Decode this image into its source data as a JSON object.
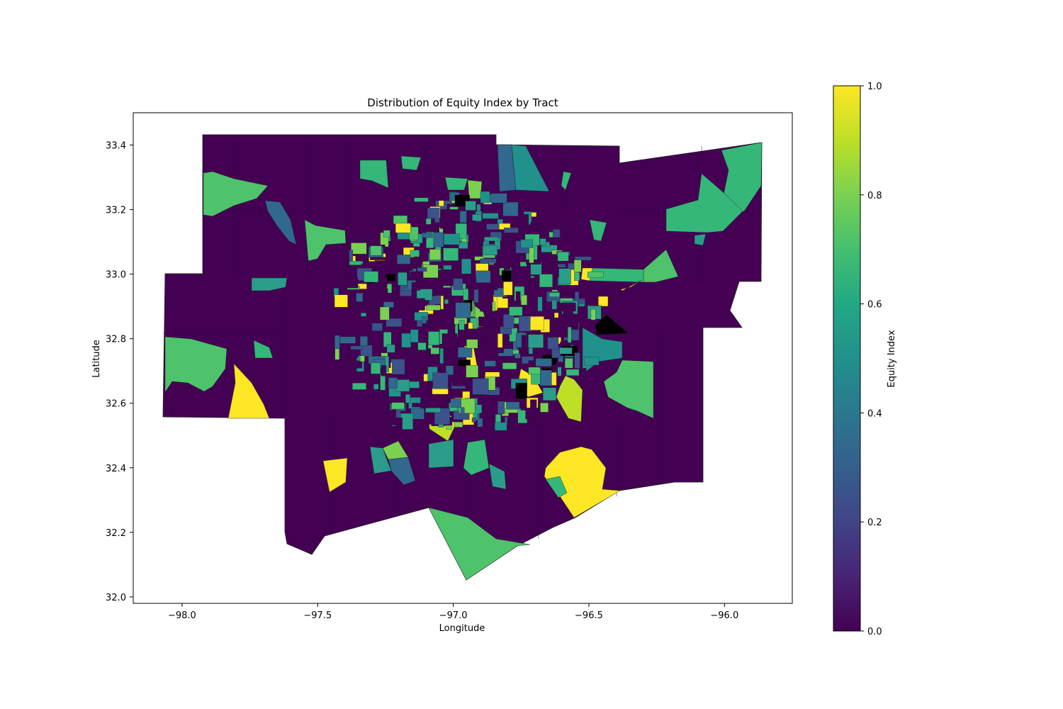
{
  "title": "Distribution of Equity Index by Tract",
  "x_axis": {
    "label": "Longitude",
    "ticks": [
      {
        "value": -98.0,
        "label": "−98.0"
      },
      {
        "value": -97.5,
        "label": "−97.5"
      },
      {
        "value": -97.0,
        "label": "−97.0"
      },
      {
        "value": -96.5,
        "label": "−96.5"
      },
      {
        "value": -96.0,
        "label": "−96.0"
      }
    ],
    "range": [
      -98.18,
      -95.75
    ]
  },
  "y_axis": {
    "label": "Latitude",
    "ticks": [
      {
        "value": 32.0,
        "label": "32.0"
      },
      {
        "value": 32.2,
        "label": "32.2"
      },
      {
        "value": 32.4,
        "label": "32.4"
      },
      {
        "value": 32.6,
        "label": "32.6"
      },
      {
        "value": 32.8,
        "label": "32.8"
      },
      {
        "value": 33.0,
        "label": "33.0"
      },
      {
        "value": 33.2,
        "label": "33.2"
      },
      {
        "value": 33.4,
        "label": "33.4"
      }
    ],
    "range": [
      31.98,
      33.5
    ]
  },
  "colorbar": {
    "label": "Equity Index",
    "colormap": "viridis",
    "range": [
      0.0,
      1.0
    ],
    "ticks": [
      {
        "value": 0.0,
        "label": "0.0"
      },
      {
        "value": 0.2,
        "label": "0.2"
      },
      {
        "value": 0.4,
        "label": "0.4"
      },
      {
        "value": 0.6,
        "label": "0.6"
      },
      {
        "value": 0.8,
        "label": "0.8"
      },
      {
        "value": 1.0,
        "label": "1.0"
      }
    ]
  },
  "missing_color": "#000000",
  "background_value": 0.0
}
